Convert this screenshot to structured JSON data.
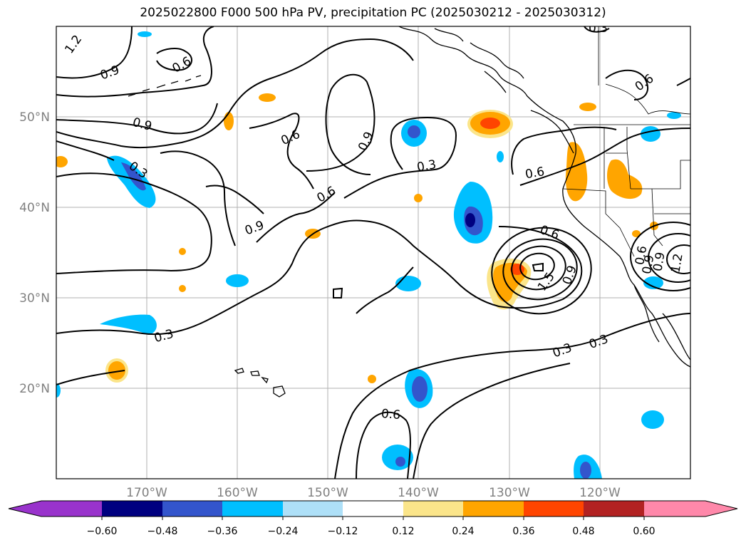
{
  "title": "2025022800 F000 500 hPa PV, precipitation PC (2025030212 - 2025030312)",
  "lat_labels": [
    {
      "value": 50,
      "text": "50°N"
    },
    {
      "value": 40,
      "text": "40°N"
    },
    {
      "value": 30,
      "text": "30°N"
    },
    {
      "value": 20,
      "text": "20°N"
    }
  ],
  "lon_labels": [
    {
      "value": -170,
      "text": "170°W"
    },
    {
      "value": -160,
      "text": "160°W"
    },
    {
      "value": -150,
      "text": "150°W"
    },
    {
      "value": -140,
      "text": "140°W"
    },
    {
      "value": -130,
      "text": "130°W"
    },
    {
      "value": -120,
      "text": "120°W"
    }
  ],
  "extent": {
    "lon_min": -180,
    "lon_max": -110,
    "lat_min": 10,
    "lat_max": 60
  },
  "contour_labels": [
    "1.2",
    "0.9",
    "0.6",
    "0.6",
    "0.9",
    "0.6",
    "0.9",
    "0.3",
    "0.9",
    "0.3",
    "0.6",
    "0.6",
    "0.9",
    "0.6",
    "1.5",
    "0.9",
    "0.9",
    "0.6",
    "1.2",
    "0.3",
    "0.3",
    "0.3",
    "0.6",
    "0.3"
  ],
  "colorbar": {
    "ticks": [
      "−0.60",
      "−0.48",
      "−0.36",
      "−0.24",
      "−0.12",
      "0.12",
      "0.24",
      "0.36",
      "0.48",
      "0.60"
    ],
    "colors": {
      "under": "#9933cc",
      "neg060": "#000080",
      "neg048": "#3355cc",
      "neg036": "#00bfff",
      "neg024": "#aee0f8",
      "zero": "#ffffff",
      "pos012": "#fbe58a",
      "pos024": "#ffa500",
      "pos036": "#ff4500",
      "pos048": "#b22222",
      "over": "#ff88aa"
    }
  }
}
